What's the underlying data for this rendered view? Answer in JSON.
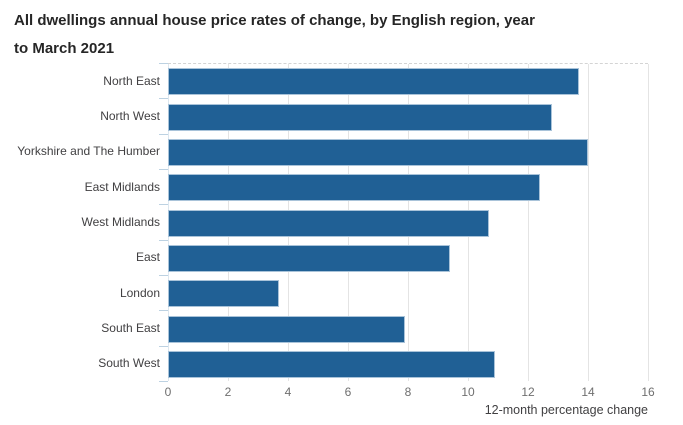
{
  "chart": {
    "title_line1": "All dwellings annual house price rates of change, by English region, year",
    "title_line2": "to March 2021",
    "xaxis_label": "12-month percentage change"
  },
  "chart_data": {
    "type": "bar",
    "orientation": "horizontal",
    "title": "All dwellings annual house price rates of change, by English region, year to March 2021",
    "categories": [
      "North East",
      "North West",
      "Yorkshire and The Humber",
      "East Midlands",
      "West Midlands",
      "East",
      "London",
      "South East",
      "South West"
    ],
    "values": [
      13.7,
      12.8,
      14.0,
      12.4,
      10.7,
      9.4,
      3.7,
      7.9,
      10.9
    ],
    "xlabel": "12-month percentage change",
    "ylabel": "",
    "xlim": [
      0,
      16
    ],
    "xticks": [
      0,
      2,
      4,
      6,
      8,
      10,
      12,
      14,
      16
    ],
    "grid": true,
    "legend": "none",
    "bar_color": "#206095",
    "gridline_color": "#e4e4e4"
  }
}
